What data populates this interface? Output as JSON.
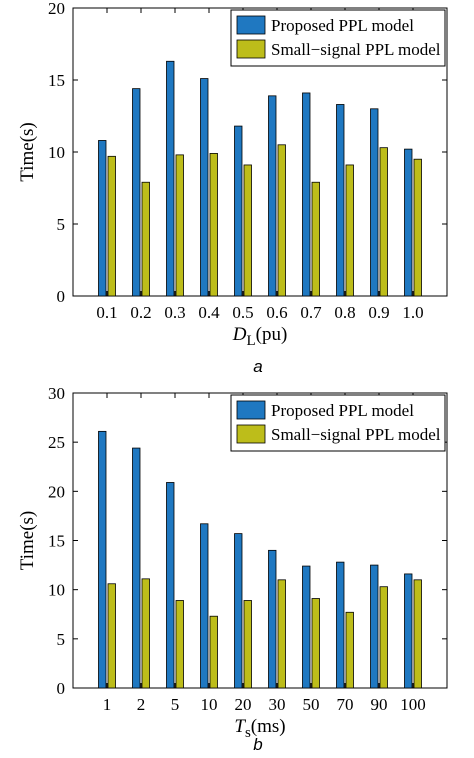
{
  "chart_data": [
    {
      "type": "bar",
      "panel_label": "a",
      "xlabel": "D",
      "xlabel_sub": "L",
      "xlabel_unit": "(pu)",
      "ylabel": "Time(s)",
      "ylim": [
        0,
        20
      ],
      "yticks": [
        0,
        5,
        10,
        15,
        20
      ],
      "categories": [
        "0.1",
        "0.2",
        "0.3",
        "0.4",
        "0.5",
        "0.6",
        "0.7",
        "0.8",
        "0.9",
        "1.0"
      ],
      "legend_position": "top-right",
      "series": [
        {
          "name": "Proposed PPL model",
          "color": "#1f78c1",
          "values": [
            10.8,
            14.4,
            16.3,
            15.1,
            11.8,
            13.9,
            14.1,
            13.3,
            13.0,
            10.2
          ]
        },
        {
          "name": "Small−signal PPL model",
          "color": "#bdbd1a",
          "values": [
            9.7,
            7.9,
            9.8,
            9.9,
            9.1,
            10.5,
            7.9,
            9.1,
            10.3,
            9.5
          ]
        }
      ]
    },
    {
      "type": "bar",
      "panel_label": "b",
      "xlabel": "T",
      "xlabel_sub": "s",
      "xlabel_unit": "(ms)",
      "ylabel": "Time(s)",
      "ylim": [
        0,
        30
      ],
      "yticks": [
        0,
        5,
        10,
        15,
        20,
        25,
        30
      ],
      "categories": [
        "1",
        "2",
        "5",
        "10",
        "20",
        "30",
        "50",
        "70",
        "90",
        "100"
      ],
      "legend_position": "top-right",
      "series": [
        {
          "name": "Proposed PPL model",
          "color": "#1f78c1",
          "values": [
            26.1,
            24.4,
            20.9,
            16.7,
            15.7,
            14.0,
            12.4,
            12.8,
            12.5,
            11.6
          ]
        },
        {
          "name": "Small−signal PPL model",
          "color": "#bdbd1a",
          "values": [
            10.6,
            11.1,
            8.9,
            7.3,
            8.9,
            11.0,
            9.1,
            7.7,
            10.3,
            11.0
          ]
        }
      ]
    }
  ]
}
